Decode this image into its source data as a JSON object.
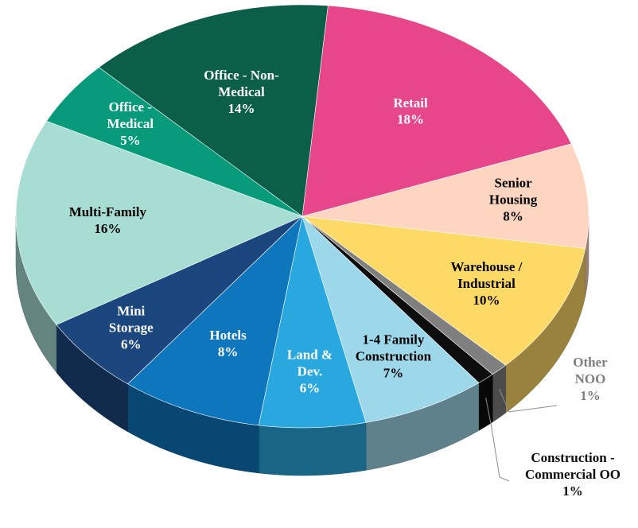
{
  "chart_data": {
    "type": "pie3d",
    "categories": [
      "Retail",
      "Senior Housing",
      "Warehouse / Industrial",
      "Other NOO",
      "Construction - Commercial OO",
      "1-4 Family Construction",
      "Land & Dev.",
      "Hotels",
      "Mini Storage",
      "Multi-Family",
      "Office - Medical",
      "Office - Non-Medical"
    ],
    "values": [
      18,
      8,
      10,
      1,
      1,
      7,
      6,
      8,
      6,
      16,
      5,
      14
    ],
    "value_labels": [
      "18%",
      "8%",
      "10%",
      "1%",
      "1%",
      "7%",
      "6%",
      "8%",
      "6%",
      "16%",
      "5%",
      "14%"
    ],
    "colors": [
      "#e8468a",
      "#fdd5c0",
      "#fdd966",
      "#7f7f7f",
      "#0d0d0d",
      "#9dd7ea",
      "#29a8e0",
      "#0e76bd",
      "#1c477e",
      "#a7ddd3",
      "#079a7b",
      "#0b5e47"
    ]
  }
}
